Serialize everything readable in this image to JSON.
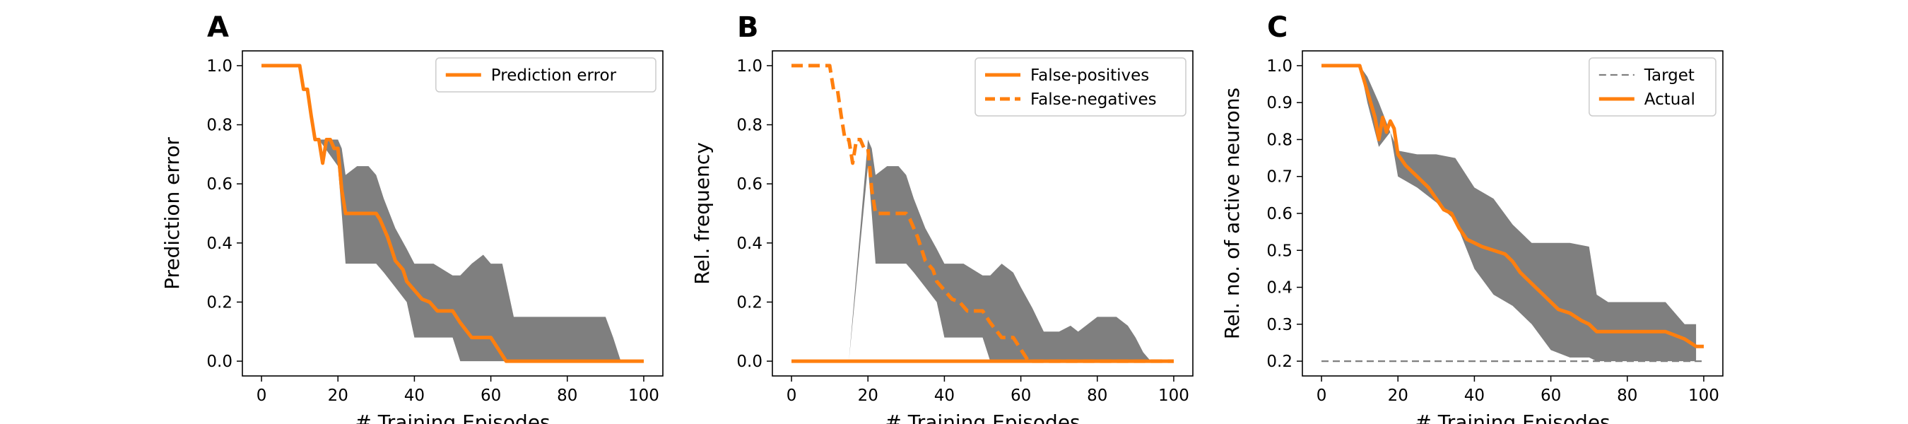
{
  "chart_data": [
    {
      "type": "line",
      "panel_letter": "A",
      "title": "",
      "xlabel": "# Training Episodes",
      "ylabel": "Prediction error",
      "xlim": [
        -5,
        105
      ],
      "ylim": [
        -0.05,
        1.05
      ],
      "xticks": [
        0,
        20,
        40,
        60,
        80,
        100
      ],
      "yticks": [
        0.0,
        0.2,
        0.4,
        0.6,
        0.8,
        1.0
      ],
      "ytick_decimals": 1,
      "legend": {
        "placement": "top-right",
        "entries": [
          {
            "name": "Prediction error",
            "style": "solid"
          }
        ]
      },
      "band": {
        "color": "#7f7f7f",
        "x": [
          0,
          10,
          15,
          20,
          21,
          22,
          25,
          28,
          30,
          32,
          35,
          38,
          40,
          45,
          50,
          52,
          55,
          58,
          60,
          63,
          66,
          70,
          73,
          75,
          80,
          85,
          88,
          90,
          92,
          94,
          96,
          98,
          100
        ],
        "upper": [
          1.0,
          1.0,
          0.75,
          0.75,
          0.72,
          0.63,
          0.66,
          0.66,
          0.63,
          0.55,
          0.45,
          0.38,
          0.33,
          0.33,
          0.29,
          0.29,
          0.33,
          0.36,
          0.33,
          0.33,
          0.15,
          0.15,
          0.15,
          0.15,
          0.15,
          0.15,
          0.15,
          0.15,
          0.08,
          0.0,
          0.0,
          0.0,
          0.0
        ],
        "lower": [
          1.0,
          1.0,
          0.75,
          0.66,
          0.5,
          0.33,
          0.33,
          0.33,
          0.33,
          0.3,
          0.25,
          0.2,
          0.08,
          0.08,
          0.08,
          0.0,
          0.0,
          0.0,
          0.0,
          0.0,
          0.0,
          0.0,
          0.0,
          0.0,
          0.0,
          0.0,
          0.0,
          0.0,
          0.0,
          0.0,
          0.0,
          0.0,
          0.0
        ]
      },
      "series": [
        {
          "name": "Prediction error",
          "color": "#ff7f0e",
          "style": "solid",
          "x": [
            0,
            10,
            11,
            12,
            13,
            14,
            15,
            16,
            17,
            18,
            19,
            20,
            21,
            22,
            25,
            28,
            30,
            31,
            32,
            33,
            34,
            35,
            37,
            38,
            40,
            42,
            44,
            46,
            48,
            50,
            52,
            55,
            58,
            60,
            62,
            64,
            66,
            70,
            80,
            90,
            100
          ],
          "y": [
            1.0,
            1.0,
            0.92,
            0.92,
            0.83,
            0.75,
            0.75,
            0.67,
            0.75,
            0.75,
            0.72,
            0.72,
            0.58,
            0.5,
            0.5,
            0.5,
            0.5,
            0.48,
            0.45,
            0.42,
            0.38,
            0.34,
            0.31,
            0.27,
            0.24,
            0.21,
            0.2,
            0.17,
            0.17,
            0.17,
            0.13,
            0.08,
            0.08,
            0.08,
            0.04,
            0.0,
            0.0,
            0.0,
            0.0,
            0.0,
            0.0
          ]
        }
      ]
    },
    {
      "type": "line",
      "panel_letter": "B",
      "title": "",
      "xlabel": "# Training Episodes",
      "ylabel": "Rel. frequency",
      "xlim": [
        -5,
        105
      ],
      "ylim": [
        -0.05,
        1.05
      ],
      "xticks": [
        0,
        20,
        40,
        60,
        80,
        100
      ],
      "yticks": [
        0.0,
        0.2,
        0.4,
        0.6,
        0.8,
        1.0
      ],
      "ytick_decimals": 1,
      "legend": {
        "placement": "top-right",
        "entries": [
          {
            "name": "False-positives",
            "style": "solid"
          },
          {
            "name": "False-negatives",
            "style": "dashed"
          }
        ]
      },
      "band": {
        "color": "#7f7f7f",
        "x": [
          0,
          10,
          15,
          20,
          21,
          22,
          25,
          28,
          30,
          32,
          35,
          38,
          40,
          45,
          50,
          52,
          55,
          58,
          60,
          63,
          66,
          70,
          73,
          75,
          80,
          85,
          88,
          90,
          92,
          94,
          96,
          98,
          100
        ],
        "upper": [
          0.0,
          0.0,
          0.0,
          0.75,
          0.72,
          0.63,
          0.66,
          0.66,
          0.63,
          0.55,
          0.45,
          0.38,
          0.33,
          0.33,
          0.29,
          0.29,
          0.33,
          0.3,
          0.25,
          0.18,
          0.1,
          0.1,
          0.12,
          0.1,
          0.15,
          0.15,
          0.12,
          0.08,
          0.03,
          0.0,
          0.0,
          0.0,
          0.0
        ],
        "lower": [
          0.0,
          0.0,
          0.0,
          0.66,
          0.5,
          0.33,
          0.33,
          0.33,
          0.33,
          0.3,
          0.25,
          0.2,
          0.08,
          0.08,
          0.08,
          0.0,
          0.0,
          0.0,
          0.0,
          0.0,
          0.0,
          0.0,
          0.0,
          0.0,
          0.0,
          0.0,
          0.0,
          0.0,
          0.0,
          0.0,
          0.0,
          0.0,
          0.0
        ]
      },
      "series": [
        {
          "name": "False-positives",
          "color": "#ff7f0e",
          "style": "solid",
          "x": [
            0,
            100
          ],
          "y": [
            0.0,
            0.0
          ]
        },
        {
          "name": "False-negatives",
          "color": "#ff7f0e",
          "style": "dashed",
          "x": [
            0,
            10,
            11,
            12,
            13,
            14,
            15,
            16,
            17,
            18,
            19,
            20,
            21,
            22,
            25,
            28,
            30,
            31,
            32,
            33,
            34,
            35,
            37,
            38,
            40,
            42,
            44,
            46,
            48,
            50,
            52,
            55,
            58,
            60,
            62,
            64,
            66,
            70,
            80,
            90,
            100
          ],
          "y": [
            1.0,
            1.0,
            0.92,
            0.92,
            0.83,
            0.75,
            0.75,
            0.67,
            0.75,
            0.75,
            0.72,
            0.72,
            0.58,
            0.5,
            0.5,
            0.5,
            0.5,
            0.48,
            0.45,
            0.42,
            0.38,
            0.34,
            0.31,
            0.27,
            0.24,
            0.21,
            0.2,
            0.17,
            0.17,
            0.17,
            0.13,
            0.08,
            0.08,
            0.04,
            0.0,
            0.0,
            0.0,
            0.0,
            0.0,
            0.0,
            0.0
          ]
        }
      ]
    },
    {
      "type": "line",
      "panel_letter": "C",
      "title": "",
      "xlabel": "# Training Episodes",
      "ylabel": "Rel. no. of active neurons",
      "xlim": [
        -5,
        105
      ],
      "ylim": [
        0.16,
        1.04
      ],
      "xticks": [
        0,
        20,
        40,
        60,
        80,
        100
      ],
      "yticks": [
        0.2,
        0.3,
        0.4,
        0.5,
        0.6,
        0.7,
        0.8,
        0.9,
        1.0
      ],
      "ytick_decimals": 1,
      "legend": {
        "placement": "top-right",
        "entries": [
          {
            "name": "Target",
            "style": "dashed-gray"
          },
          {
            "name": "Actual",
            "style": "solid"
          }
        ]
      },
      "band": {
        "color": "#7f7f7f",
        "x": [
          0,
          10,
          12,
          15,
          18,
          20,
          25,
          30,
          35,
          40,
          45,
          50,
          55,
          60,
          65,
          70,
          72,
          75,
          80,
          85,
          90,
          95,
          98
        ],
        "upper": [
          1.0,
          1.0,
          0.97,
          0.9,
          0.82,
          0.77,
          0.76,
          0.76,
          0.75,
          0.67,
          0.64,
          0.57,
          0.52,
          0.52,
          0.52,
          0.51,
          0.38,
          0.36,
          0.36,
          0.36,
          0.36,
          0.3,
          0.3
        ],
        "lower": [
          1.0,
          1.0,
          0.9,
          0.78,
          0.82,
          0.7,
          0.67,
          0.63,
          0.58,
          0.45,
          0.38,
          0.35,
          0.3,
          0.23,
          0.21,
          0.21,
          0.2,
          0.2,
          0.2,
          0.2,
          0.2,
          0.2,
          0.2
        ]
      },
      "series": [
        {
          "name": "Target",
          "color": "#7f7f7f",
          "style": "dashed",
          "x": [
            0,
            100
          ],
          "y": [
            0.2,
            0.2
          ]
        },
        {
          "name": "Actual",
          "color": "#ff7f0e",
          "style": "solid",
          "x": [
            0,
            10,
            12,
            14,
            15,
            16,
            17,
            18,
            19,
            20,
            22,
            25,
            28,
            30,
            32,
            34,
            36,
            38,
            40,
            42,
            45,
            48,
            50,
            52,
            55,
            58,
            60,
            62,
            65,
            68,
            70,
            72,
            75,
            80,
            85,
            90,
            95,
            98,
            100
          ],
          "y": [
            1.0,
            1.0,
            0.93,
            0.86,
            0.8,
            0.86,
            0.82,
            0.85,
            0.83,
            0.76,
            0.73,
            0.7,
            0.67,
            0.64,
            0.61,
            0.6,
            0.56,
            0.53,
            0.52,
            0.51,
            0.5,
            0.49,
            0.47,
            0.44,
            0.41,
            0.38,
            0.36,
            0.34,
            0.33,
            0.31,
            0.3,
            0.28,
            0.28,
            0.28,
            0.28,
            0.28,
            0.26,
            0.24,
            0.24
          ]
        }
      ]
    }
  ]
}
